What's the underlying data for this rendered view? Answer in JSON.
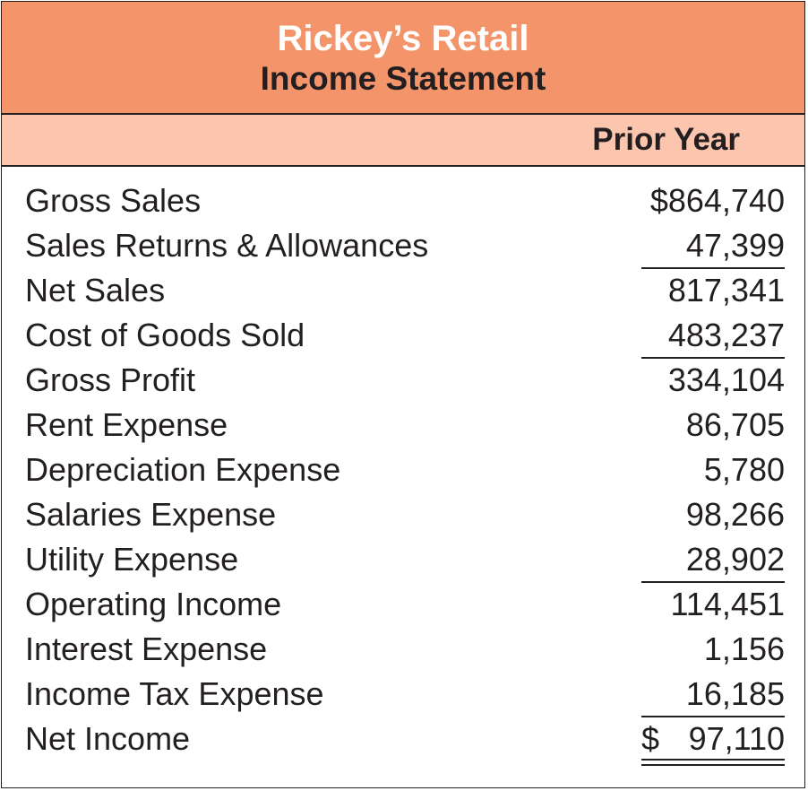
{
  "header": {
    "company": "Rickey’s Retail",
    "statement": "Income Statement",
    "column": "Prior Year"
  },
  "colors": {
    "title_bg": "#f4946a",
    "column_bg": "#fbc5ae",
    "text": "#231f20"
  },
  "rows": [
    {
      "label": "Gross Sales",
      "currency": "",
      "amount": "$864,740"
    },
    {
      "label": "Sales Returns & Allowances",
      "currency": "",
      "amount": "47,399"
    },
    {
      "label": "Net Sales",
      "currency": "",
      "amount": "817,341"
    },
    {
      "label": "Cost of Goods Sold",
      "currency": "",
      "amount": "483,237"
    },
    {
      "label": "Gross Profit",
      "currency": "",
      "amount": "334,104"
    },
    {
      "label": "Rent Expense",
      "currency": "",
      "amount": "86,705"
    },
    {
      "label": "Depreciation Expense",
      "currency": "",
      "amount": "5,780"
    },
    {
      "label": "Salaries Expense",
      "currency": "",
      "amount": "98,266"
    },
    {
      "label": "Utility Expense",
      "currency": "",
      "amount": "28,902"
    },
    {
      "label": "Operating Income",
      "currency": "",
      "amount": "114,451"
    },
    {
      "label": "Interest Expense",
      "currency": "",
      "amount": "1,156"
    },
    {
      "label": "Income Tax Expense",
      "currency": "",
      "amount": "16,185"
    },
    {
      "label": "Net Income",
      "currency": "$",
      "amount": "97,110"
    }
  ]
}
